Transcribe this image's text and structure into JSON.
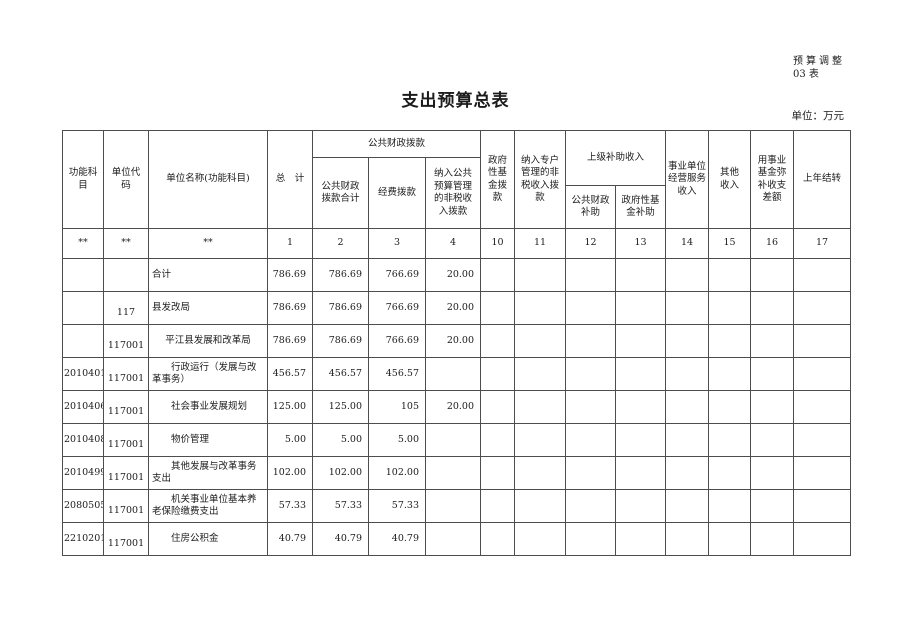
{
  "page": {
    "corner_note_line1": "预算调整",
    "corner_note_line2": "03 表",
    "title": "支出预算总表",
    "unit_note": "单位：万元"
  },
  "table": {
    "headers": {
      "functional_subject": "功能科\n目",
      "unit_code": "单位代\n码",
      "unit_name": "单位名称(功能科目)",
      "total": "总　计",
      "public_finance_group": "公共财政拨款",
      "public_finance_total": "公共财政\n拨款合计",
      "funding_allocation": "经费拨款",
      "nontax_into_budget": "纳入公共\n预算管理\n的非税收\n入拨款",
      "gov_fund_allocation": "政府\n性基\n金拨\n款",
      "nontax_special_account": "纳入专户\n管理的非\n税收入拨\n款",
      "superior_subsidy_group": "上级补助收入",
      "public_finance_subsidy": "公共财政\n补助",
      "gov_fund_subsidy": "政府性基\n金补助",
      "business_service_income": "事业单位\n经营服务\n收入",
      "other_income": "其他\n收入",
      "fund_balance_offset": "用事业\n基金弥\n补收支\n差额",
      "prev_year_carryover": "上年结转"
    },
    "column_numbers": [
      "**",
      "**",
      "**",
      "1",
      "2",
      "3",
      "4",
      "10",
      "11",
      "12",
      "13",
      "14",
      "15",
      "16",
      "17"
    ],
    "rows": [
      {
        "func_code": "",
        "unit_code": "",
        "name": "合计",
        "name_align": "left",
        "values": [
          "786.69",
          "786.69",
          "766.69",
          "20.00",
          "",
          "",
          "",
          "",
          "",
          "",
          "",
          ""
        ]
      },
      {
        "func_code": "",
        "unit_code": "117",
        "name": "县发改局",
        "name_align": "left",
        "values": [
          "786.69",
          "786.69",
          "766.69",
          "20.00",
          "",
          "",
          "",
          "",
          "",
          "",
          "",
          ""
        ]
      },
      {
        "func_code": "",
        "unit_code": "117001",
        "name": "平江县发展和改革局",
        "name_align": "center",
        "values": [
          "786.69",
          "786.69",
          "766.69",
          "20.00",
          "",
          "",
          "",
          "",
          "",
          "",
          "",
          ""
        ]
      },
      {
        "func_code": "2010401",
        "unit_code": "117001",
        "name": "行政运行（发展与改革事务）",
        "name_align": "indent",
        "values": [
          "456.57",
          "456.57",
          "456.57",
          "",
          "",
          "",
          "",
          "",
          "",
          "",
          "",
          ""
        ]
      },
      {
        "func_code": "2010406",
        "unit_code": "117001",
        "name": "社会事业发展规划",
        "name_align": "indent",
        "values": [
          "125.00",
          "125.00",
          "105",
          "20.00",
          "",
          "",
          "",
          "",
          "",
          "",
          "",
          ""
        ]
      },
      {
        "func_code": "2010408",
        "unit_code": "117001",
        "name": "物价管理",
        "name_align": "indent",
        "values": [
          "5.00",
          "5.00",
          "5.00",
          "",
          "",
          "",
          "",
          "",
          "",
          "",
          "",
          ""
        ]
      },
      {
        "func_code": "2010499",
        "unit_code": "117001",
        "name": "其他发展与改革事务支出",
        "name_align": "indent",
        "values": [
          "102.00",
          "102.00",
          "102.00",
          "",
          "",
          "",
          "",
          "",
          "",
          "",
          "",
          ""
        ]
      },
      {
        "func_code": "2080505",
        "unit_code": "117001",
        "name": "机关事业单位基本养老保险缴费支出",
        "name_align": "indent",
        "values": [
          "57.33",
          "57.33",
          "57.33",
          "",
          "",
          "",
          "",
          "",
          "",
          "",
          "",
          ""
        ]
      },
      {
        "func_code": "2210201",
        "unit_code": "117001",
        "name": "住房公积金",
        "name_align": "indent",
        "values": [
          "40.79",
          "40.79",
          "40.79",
          "",
          "",
          "",
          "",
          "",
          "",
          "",
          "",
          ""
        ]
      }
    ]
  }
}
